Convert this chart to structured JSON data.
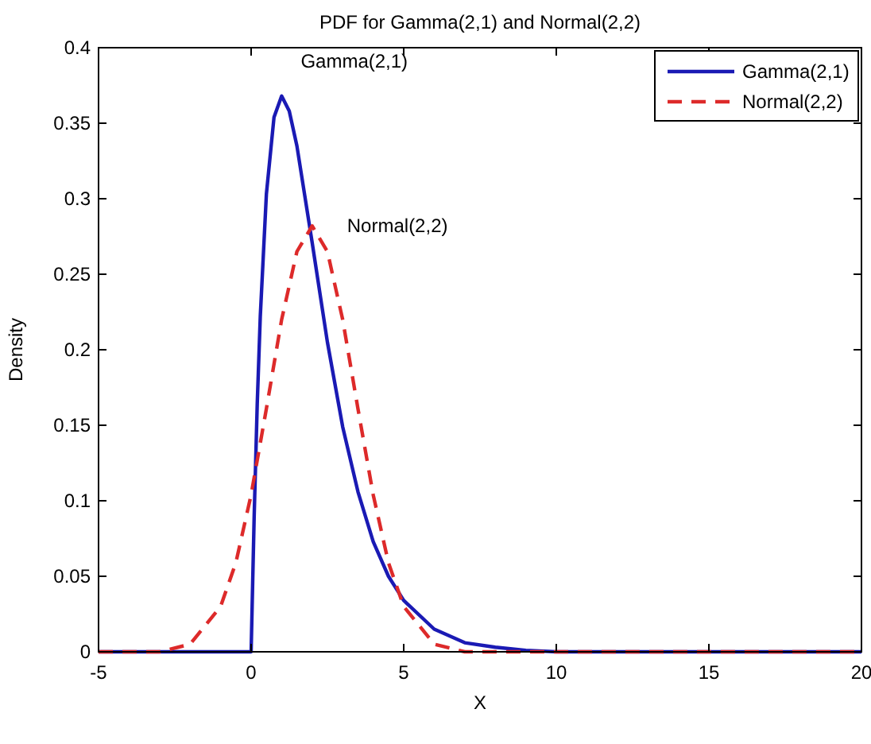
{
  "chart_data": {
    "type": "line",
    "title": "PDF for Gamma(2,1) and Normal(2,2)",
    "xlabel": "X",
    "ylabel": "Density",
    "xlim": [
      -5,
      20
    ],
    "xticks": [
      -5,
      0,
      5,
      10,
      15,
      20
    ],
    "ylim": [
      0,
      0.4
    ],
    "yticks": [
      0,
      0.05,
      0.1,
      0.15,
      0.2,
      0.25,
      0.3,
      0.35,
      0.4
    ],
    "grid": false,
    "legend": "top right",
    "annotations": [
      "Gamma(2,1)",
      "Normal(2,2)"
    ],
    "series": [
      {
        "name": "Gamma(2,1)",
        "color": "#1a1ab4",
        "line_style": "solid",
        "x": [
          -5,
          0,
          0.1,
          0.2,
          0.3,
          0.5,
          0.75,
          1,
          1.25,
          1.5,
          2,
          2.5,
          3,
          3.5,
          4,
          4.5,
          5,
          6,
          7,
          8,
          9,
          10,
          20
        ],
        "values": [
          0,
          0,
          0.09,
          0.164,
          0.222,
          0.303,
          0.354,
          0.368,
          0.358,
          0.335,
          0.271,
          0.205,
          0.149,
          0.106,
          0.073,
          0.05,
          0.034,
          0.015,
          0.006,
          0.003,
          0.001,
          0,
          0
        ]
      },
      {
        "name": "Normal(2,2)",
        "color": "#dd2a2a",
        "line_style": "dashed",
        "x": [
          -5,
          -3,
          -2,
          -1,
          -0.5,
          0,
          0.5,
          1,
          1.5,
          2,
          2.5,
          3,
          3.5,
          4,
          4.5,
          5,
          6,
          7,
          9,
          20
        ],
        "values": [
          0,
          0,
          0.005,
          0.03,
          0.059,
          0.104,
          0.161,
          0.22,
          0.265,
          0.282,
          0.265,
          0.22,
          0.161,
          0.104,
          0.059,
          0.03,
          0.005,
          0,
          0,
          0
        ]
      }
    ]
  }
}
